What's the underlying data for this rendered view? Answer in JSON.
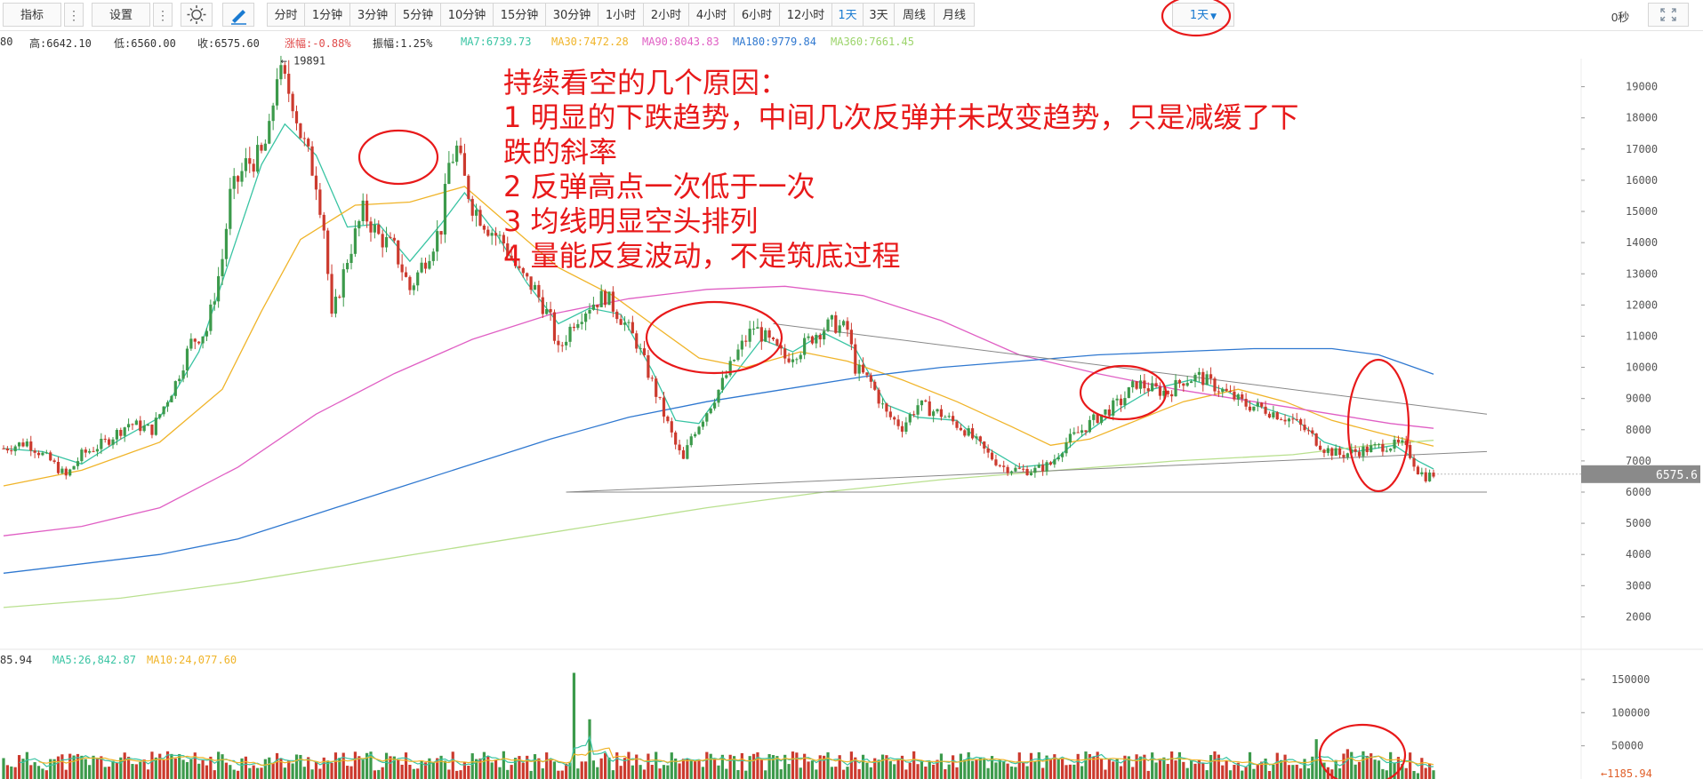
{
  "toolbar": {
    "indicators_label": "指标",
    "settings_label": "设置",
    "intervals": [
      "分时",
      "1分钟",
      "3分钟",
      "5分钟",
      "10分钟",
      "15分钟",
      "30分钟",
      "1小时",
      "2小时",
      "4小时",
      "6小时",
      "12小时",
      "1天",
      "3天",
      "周线",
      "月线"
    ],
    "active_interval": "1天",
    "interval_dropdown_label": "1天",
    "countdown": "0秒"
  },
  "info": {
    "open_partial": "80",
    "high": "高:6642.10",
    "low": "低:6560.00",
    "close": "收:6575.60",
    "change": "涨幅:-0.88%",
    "amplitude": "振幅:1.25%",
    "ma7": "MA7:6739.73",
    "ma30": "MA30:7472.28",
    "ma90": "MA90:8043.83",
    "ma180": "MA180:9779.84",
    "ma360": "MA360:7661.45"
  },
  "volume_info": {
    "vol_partial": "85.94",
    "ma5": "MA5:26,842.87",
    "ma10": "MA10:24,077.60"
  },
  "annotation": {
    "title": "持续看空的几个原因：",
    "line1a": "1 明显的下跌趋势，中间几次反弹并未改变趋势，只是减缓了下",
    "line1b": "跌的斜率",
    "line2": "2 反弹高点一次低于一次",
    "line3": "3 均线明显空头排列",
    "line4": "4 量能反复波动，不是筑底过程"
  },
  "colors": {
    "up": "#3c9a4b",
    "down": "#cc3a2e",
    "ma7": "#39c4a3",
    "ma30": "#f0b429",
    "ma90": "#e05fc4",
    "ma180": "#2f78d0",
    "ma360": "#b9e08f",
    "annotation": "#e8191a"
  },
  "chart_data": [
    {
      "type": "candlestick",
      "interval": "1天",
      "price_axis_ticks": [
        19000,
        18000,
        17000,
        16000,
        15000,
        14000,
        13000,
        12000,
        11000,
        10000,
        9000,
        8000,
        7000,
        6000,
        5000,
        4000,
        3000,
        2000
      ],
      "ylim": [
        1500,
        19900
      ],
      "last_price": "6575.6",
      "peak_label": "← 19891",
      "peak_value": 19891,
      "last": {
        "high": 6642.1,
        "low": 6560.0,
        "close": 6575.6,
        "change_pct": -0.88,
        "amplitude_pct": 1.25
      },
      "close_path": [
        [
          0,
          7400
        ],
        [
          6,
          7600
        ],
        [
          12,
          7000
        ],
        [
          16,
          6500
        ],
        [
          20,
          7200
        ],
        [
          26,
          7600
        ],
        [
          32,
          8200
        ],
        [
          38,
          8000
        ],
        [
          44,
          9500
        ],
        [
          48,
          10800
        ],
        [
          52,
          11200
        ],
        [
          56,
          13500
        ],
        [
          58,
          15500
        ],
        [
          62,
          16500
        ],
        [
          66,
          16800
        ],
        [
          68,
          17500
        ],
        [
          70,
          19500
        ],
        [
          72,
          19100
        ],
        [
          74,
          18600
        ],
        [
          76,
          17500
        ],
        [
          80,
          16000
        ],
        [
          82,
          14500
        ],
        [
          84,
          11500
        ],
        [
          88,
          13500
        ],
        [
          92,
          15000
        ],
        [
          96,
          14200
        ],
        [
          100,
          13800
        ],
        [
          104,
          12500
        ],
        [
          108,
          13500
        ],
        [
          112,
          14500
        ],
        [
          114,
          16500
        ],
        [
          116,
          17000
        ],
        [
          118,
          16000
        ],
        [
          120,
          15200
        ],
        [
          124,
          14500
        ],
        [
          128,
          14000
        ],
        [
          132,
          13000
        ],
        [
          136,
          12500
        ],
        [
          140,
          11500
        ],
        [
          142,
          10500
        ],
        [
          146,
          11500
        ],
        [
          150,
          12000
        ],
        [
          154,
          12300
        ],
        [
          158,
          11600
        ],
        [
          162,
          10800
        ],
        [
          166,
          9500
        ],
        [
          169,
          8500
        ],
        [
          172,
          7500
        ],
        [
          174,
          7000
        ],
        [
          176,
          7800
        ],
        [
          180,
          8600
        ],
        [
          184,
          9500
        ],
        [
          188,
          10500
        ],
        [
          192,
          11300
        ],
        [
          196,
          10800
        ],
        [
          200,
          10300
        ],
        [
          204,
          10600
        ],
        [
          208,
          11100
        ],
        [
          212,
          11400
        ],
        [
          216,
          11200
        ],
        [
          218,
          10000
        ],
        [
          222,
          9500
        ],
        [
          226,
          8500
        ],
        [
          230,
          8100
        ],
        [
          234,
          8800
        ],
        [
          240,
          8500
        ],
        [
          246,
          8000
        ],
        [
          252,
          7200
        ],
        [
          256,
          6800
        ],
        [
          260,
          6700
        ],
        [
          264,
          6700
        ],
        [
          268,
          6900
        ],
        [
          272,
          7600
        ],
        [
          276,
          8000
        ],
        [
          280,
          8400
        ],
        [
          286,
          8900
        ],
        [
          290,
          9500
        ],
        [
          294,
          9300
        ],
        [
          298,
          9200
        ],
        [
          302,
          9600
        ],
        [
          306,
          9700
        ],
        [
          310,
          9400
        ],
        [
          314,
          9100
        ],
        [
          318,
          8800
        ],
        [
          322,
          8700
        ],
        [
          326,
          8500
        ],
        [
          330,
          8300
        ],
        [
          334,
          7900
        ],
        [
          338,
          7400
        ],
        [
          342,
          7200
        ],
        [
          346,
          7300
        ],
        [
          350,
          7400
        ],
        [
          354,
          7500
        ],
        [
          358,
          7500
        ],
        [
          360,
          7200
        ],
        [
          362,
          6700
        ],
        [
          364,
          6500
        ],
        [
          366,
          6576
        ]
      ],
      "moving_averages": [
        {
          "name": "MA7",
          "last": 6739.73,
          "points": [
            [
              0,
              7400
            ],
            [
              10,
              7300
            ],
            [
              20,
              6900
            ],
            [
              30,
              7700
            ],
            [
              40,
              8400
            ],
            [
              50,
              10500
            ],
            [
              58,
              13500
            ],
            [
              66,
              16500
            ],
            [
              72,
              17800
            ],
            [
              80,
              16800
            ],
            [
              88,
              14500
            ],
            [
              96,
              14600
            ],
            [
              104,
              13400
            ],
            [
              112,
              14600
            ],
            [
              118,
              15600
            ],
            [
              126,
              14300
            ],
            [
              134,
              12700
            ],
            [
              142,
              11400
            ],
            [
              150,
              11900
            ],
            [
              158,
              11700
            ],
            [
              166,
              9900
            ],
            [
              172,
              8300
            ],
            [
              178,
              8200
            ],
            [
              186,
              9600
            ],
            [
              194,
              10900
            ],
            [
              202,
              10500
            ],
            [
              210,
              11100
            ],
            [
              218,
              10600
            ],
            [
              226,
              8800
            ],
            [
              234,
              8400
            ],
            [
              244,
              8300
            ],
            [
              252,
              7400
            ],
            [
              260,
              6800
            ],
            [
              268,
              6900
            ],
            [
              276,
              7800
            ],
            [
              286,
              8700
            ],
            [
              294,
              9300
            ],
            [
              304,
              9600
            ],
            [
              312,
              9300
            ],
            [
              320,
              8800
            ],
            [
              330,
              8400
            ],
            [
              338,
              7600
            ],
            [
              346,
              7300
            ],
            [
              356,
              7500
            ],
            [
              362,
              7000
            ],
            [
              366,
              6740
            ]
          ]
        },
        {
          "name": "MA30",
          "last": 7472.28,
          "points": [
            [
              0,
              6200
            ],
            [
              20,
              6700
            ],
            [
              40,
              7600
            ],
            [
              56,
              9300
            ],
            [
              66,
              11800
            ],
            [
              76,
              14100
            ],
            [
              90,
              15200
            ],
            [
              104,
              15300
            ],
            [
              118,
              15800
            ],
            [
              130,
              14500
            ],
            [
              142,
              13200
            ],
            [
              156,
              12300
            ],
            [
              168,
              11200
            ],
            [
              178,
              10300
            ],
            [
              190,
              10000
            ],
            [
              204,
              10500
            ],
            [
              216,
              10200
            ],
            [
              230,
              9600
            ],
            [
              244,
              8900
            ],
            [
              258,
              8100
            ],
            [
              268,
              7500
            ],
            [
              278,
              7700
            ],
            [
              290,
              8300
            ],
            [
              302,
              8900
            ],
            [
              316,
              9300
            ],
            [
              328,
              8900
            ],
            [
              340,
              8300
            ],
            [
              352,
              7900
            ],
            [
              366,
              7472
            ]
          ]
        },
        {
          "name": "MA90",
          "last": 8043.83,
          "points": [
            [
              0,
              4600
            ],
            [
              20,
              4900
            ],
            [
              40,
              5500
            ],
            [
              60,
              6800
            ],
            [
              80,
              8500
            ],
            [
              100,
              9800
            ],
            [
              120,
              10900
            ],
            [
              140,
              11700
            ],
            [
              160,
              12200
            ],
            [
              180,
              12500
            ],
            [
              200,
              12600
            ],
            [
              220,
              12300
            ],
            [
              240,
              11500
            ],
            [
              260,
              10400
            ],
            [
              280,
              9800
            ],
            [
              300,
              9300
            ],
            [
              320,
              8900
            ],
            [
              340,
              8500
            ],
            [
              355,
              8200
            ],
            [
              366,
              8044
            ]
          ]
        },
        {
          "name": "MA180",
          "last": 9779.84,
          "points": [
            [
              0,
              3400
            ],
            [
              20,
              3700
            ],
            [
              40,
              4000
            ],
            [
              60,
              4500
            ],
            [
              80,
              5300
            ],
            [
              100,
              6100
            ],
            [
              120,
              6900
            ],
            [
              140,
              7700
            ],
            [
              160,
              8400
            ],
            [
              180,
              8900
            ],
            [
              200,
              9300
            ],
            [
              220,
              9700
            ],
            [
              240,
              10000
            ],
            [
              260,
              10200
            ],
            [
              280,
              10400
            ],
            [
              300,
              10500
            ],
            [
              320,
              10600
            ],
            [
              340,
              10600
            ],
            [
              352,
              10400
            ],
            [
              366,
              9780
            ]
          ]
        },
        {
          "name": "MA360",
          "last": 7661.45,
          "points": [
            [
              0,
              2300
            ],
            [
              30,
              2600
            ],
            [
              60,
              3100
            ],
            [
              90,
              3700
            ],
            [
              120,
              4300
            ],
            [
              150,
              4900
            ],
            [
              180,
              5500
            ],
            [
              210,
              6000
            ],
            [
              240,
              6400
            ],
            [
              270,
              6700
            ],
            [
              300,
              7000
            ],
            [
              330,
              7200
            ],
            [
              350,
              7500
            ],
            [
              366,
              7661
            ]
          ]
        }
      ],
      "trendlines": [
        {
          "from": [
            197,
            11400
          ],
          "to": [
            366,
            8500
          ]
        },
        {
          "from": [
            144,
            6000
          ],
          "to": [
            366,
            7300
          ]
        },
        {
          "from": [
            144,
            6000
          ],
          "to": [
            366,
            6000
          ]
        }
      ]
    },
    {
      "type": "volume",
      "axis_ticks": [
        150000,
        100000,
        50000
      ],
      "ylim": [
        0,
        170000
      ],
      "last_value": "1185.94",
      "ma5_last": 26842.87,
      "ma10_last": 24077.6,
      "spikes": [
        [
          12,
          30000
        ],
        [
          40,
          38000
        ],
        [
          88,
          20000
        ],
        [
          112,
          35000
        ],
        [
          146,
          160000
        ],
        [
          150,
          90000
        ],
        [
          230,
          35000
        ],
        [
          260,
          40000
        ],
        [
          300,
          28000
        ],
        [
          336,
          60000
        ],
        [
          344,
          45000
        ]
      ]
    }
  ]
}
